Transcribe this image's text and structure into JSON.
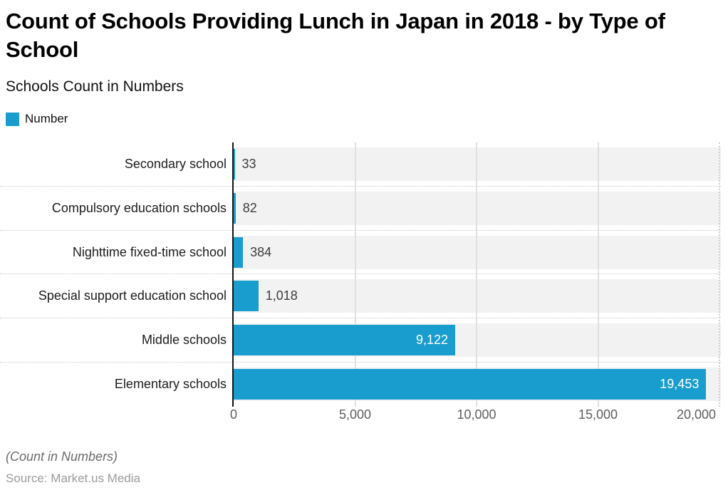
{
  "header": {
    "title": "Count of Schools Providing Lunch in Japan in 2018 - by Type of School",
    "subtitle": "Schools Count in Numbers"
  },
  "legend": {
    "label": "Number",
    "color": "#199dce"
  },
  "chart_data": {
    "type": "bar",
    "orientation": "horizontal",
    "title": "Count of Schools Providing Lunch in Japan in 2018 - by Type of School",
    "subtitle": "Schools Count in Numbers",
    "series_name": "Number",
    "categories": [
      "Secondary school",
      "Compulsory education schools",
      "Nighttime fixed-time school",
      "Special support education school",
      "Middle schools",
      "Elementary schools"
    ],
    "values": [
      33,
      82,
      384,
      1018,
      9122,
      19453
    ],
    "value_labels": [
      "33",
      "82",
      "384",
      "1,018",
      "9,122",
      "19,453"
    ],
    "xlim": [
      0,
      20000
    ],
    "x_ticks": [
      0,
      5000,
      10000,
      15000,
      20000
    ],
    "x_tick_labels": [
      "0",
      "5,000",
      "10,000",
      "15,000",
      "20,000"
    ],
    "xlabel": "",
    "ylabel": "",
    "bar_color": "#199dce",
    "row_band_color": "#f2f2f2",
    "grid": true,
    "legend_position": "top-left"
  },
  "footer": {
    "note": "(Count in Numbers)",
    "source": "Source: Market.us Media"
  }
}
